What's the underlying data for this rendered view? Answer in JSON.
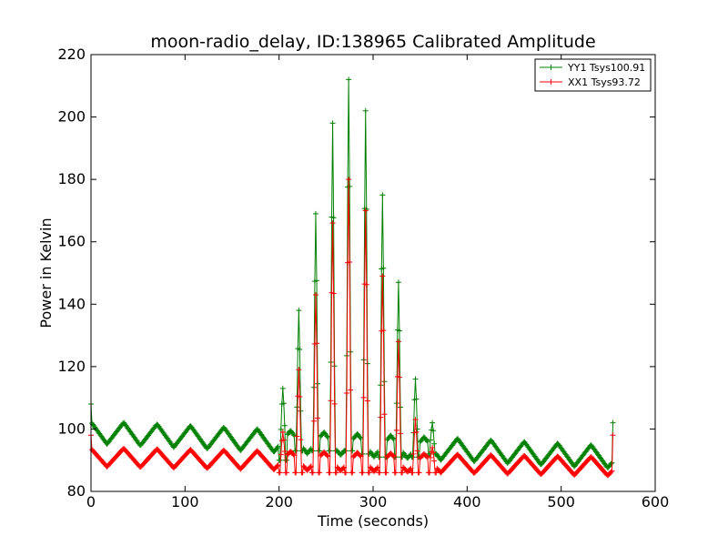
{
  "chart_data": {
    "type": "line",
    "title": "moon-radio_delay, ID:138965 Calibrated Amplitude",
    "xlabel": "Time (seconds)",
    "ylabel": "Power in Kelvin",
    "xlim": [
      0,
      600
    ],
    "ylim": [
      80,
      220
    ],
    "xticks": [
      0,
      100,
      200,
      300,
      400,
      500,
      600
    ],
    "yticks": [
      80,
      100,
      120,
      140,
      160,
      180,
      200,
      220
    ],
    "grid": false,
    "legend_position": "top-right",
    "sample_interval_s": 1,
    "time_range": [
      0,
      555
    ],
    "baseline_period_s": 35.5,
    "pulse_times": [
      204,
      221,
      239,
      257,
      274,
      292,
      310,
      327,
      345,
      363
    ],
    "series": [
      {
        "name": "YY1 Tsys100.91",
        "color": "#008000",
        "baseline_mean_start": 99,
        "baseline_mean_end": 91,
        "baseline_ripple": 3.6,
        "pulse_peaks": [
          113,
          138,
          169,
          198,
          212,
          202,
          175,
          147,
          116,
          102
        ],
        "pulse_troughs": [
          90,
          93,
          93,
          93,
          93,
          92,
          91,
          91,
          91,
          92
        ],
        "start_value": 108,
        "end_value": 102
      },
      {
        "name": "XX1 Tsys93.72",
        "color": "#ff0000",
        "baseline_mean_start": 91,
        "baseline_mean_end": 88,
        "baseline_ripple": 3.0,
        "pulse_peaks": [
          99,
          119,
          143,
          166,
          180,
          170,
          149,
          128,
          103,
          94
        ],
        "pulse_troughs": [
          86,
          86,
          86,
          86,
          86,
          86,
          86,
          86,
          86,
          86
        ],
        "start_value": 98,
        "end_value": 98
      }
    ]
  }
}
